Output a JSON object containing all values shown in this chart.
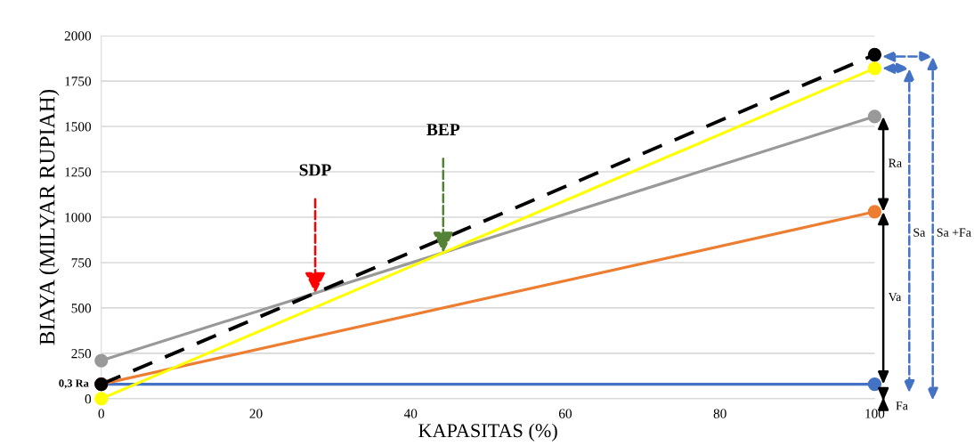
{
  "chart_data": {
    "type": "line",
    "xlabel": "KAPASITAS (%)",
    "ylabel": "BIAYA (MILYAR RUPIAH)",
    "x": [
      0,
      100
    ],
    "series": [
      {
        "color": "#4472c4",
        "values": [
          80,
          80
        ]
      },
      {
        "color": "#ed7d31",
        "values": [
          80,
          1030
        ]
      },
      {
        "color": "#999999",
        "values": [
          210,
          1555
        ]
      },
      {
        "color": "#ffff00",
        "values": [
          0,
          1820
        ]
      },
      {
        "color": "#000000",
        "values": [
          80,
          1895
        ],
        "line_style": "dashed"
      }
    ],
    "xlim": [
      0,
      100
    ],
    "xticks": [
      0,
      20,
      40,
      60,
      80,
      100
    ],
    "ylim": [
      0,
      2000
    ],
    "yticks": [
      0,
      250,
      500,
      750,
      1000,
      1250,
      1500,
      1750,
      2000
    ],
    "grid": "y",
    "marker": "circle",
    "line_style": "solid",
    "annotations": [
      "SDP",
      "BEP",
      {
        "text": "0,3 Ra",
        "x": 0,
        "y": 80
      },
      "Ra",
      "Va",
      "Sa",
      "Sa +Fa",
      "Fa"
    ]
  }
}
